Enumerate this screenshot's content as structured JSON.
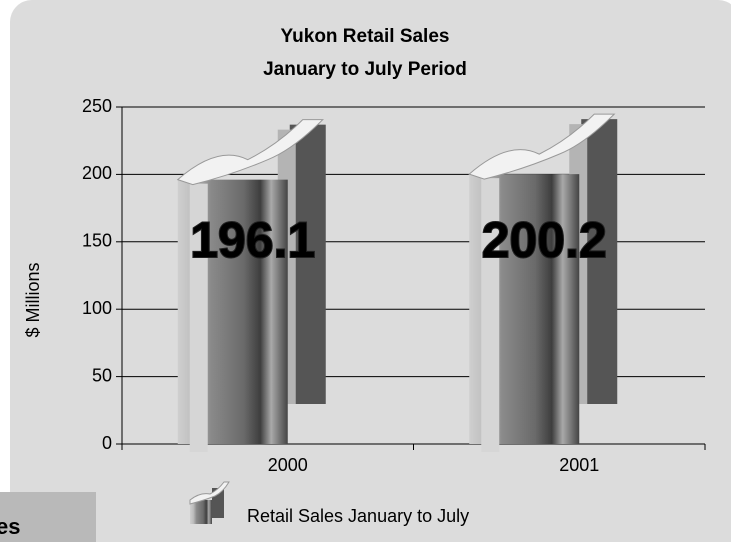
{
  "chart_data": {
    "type": "bar",
    "title": [
      "Yukon Retail Sales",
      "January to July Period"
    ],
    "y_label": "$ Millions",
    "categories": [
      "2000",
      "2001"
    ],
    "series": [
      {
        "name": "Retail Sales January to July",
        "color": "#6e6e6e",
        "values": [
          196.1,
          200.2
        ]
      }
    ],
    "ylim": [
      0,
      250
    ],
    "yticks": [
      0,
      50,
      100,
      150,
      200,
      250
    ],
    "grid": true
  },
  "fragment": "es"
}
